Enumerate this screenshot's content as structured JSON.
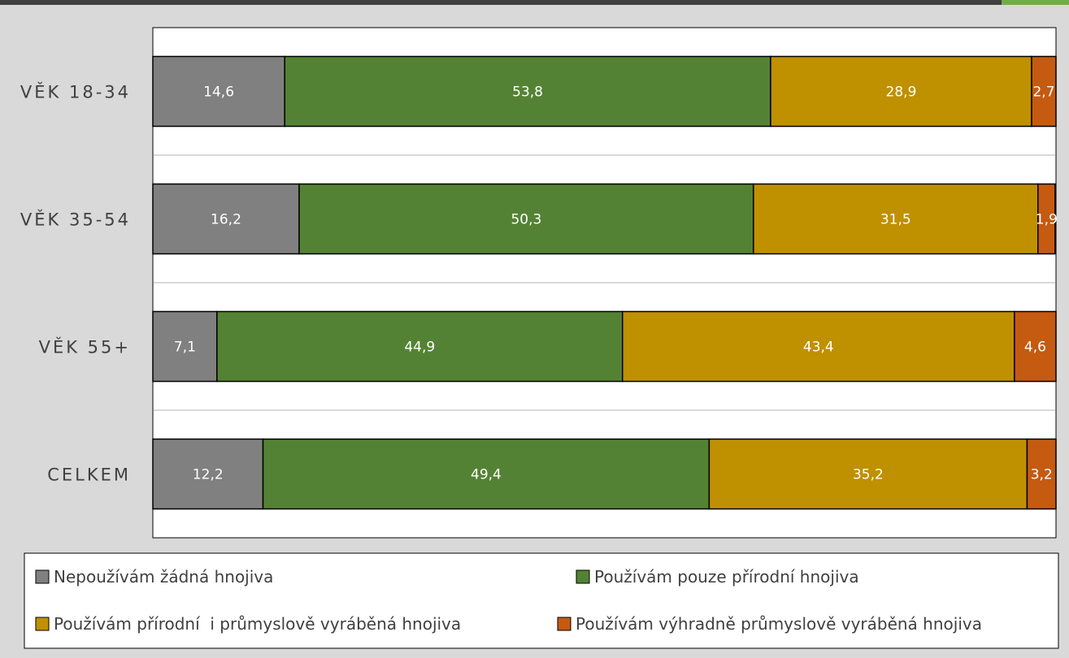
{
  "chart_data": {
    "type": "bar",
    "orientation": "horizontal",
    "stacked": true,
    "categories": [
      "VĚK 18-34",
      "VĚK 35-54",
      "VĚK 55+",
      "CELKEM"
    ],
    "series": [
      {
        "name": "Nepoužívám žádná hnojiva",
        "values": [
          14.6,
          16.2,
          7.1,
          12.2
        ],
        "color": "#808080"
      },
      {
        "name": "Používám pouze přírodní hnojiva",
        "values": [
          53.8,
          50.3,
          44.9,
          49.4
        ],
        "color": "#548235"
      },
      {
        "name": "Používám přírodní  i průmyslově vyráběná hnojiva",
        "values": [
          28.9,
          31.5,
          43.4,
          35.2
        ],
        "color": "#bf9000"
      },
      {
        "name": "Používám výhradně průmyslově vyráběná hnojiva",
        "values": [
          2.7,
          1.9,
          4.6,
          3.2
        ],
        "color": "#c55a11"
      }
    ],
    "data_labels": [
      [
        "14,6",
        "53,8",
        "28,9",
        "2,7"
      ],
      [
        "16,2",
        "50,3",
        "31,5",
        "1,9"
      ],
      [
        "7,1",
        "44,9",
        "43,4",
        "4,6"
      ],
      [
        "12,2",
        "49,4",
        "35,2",
        "3,2"
      ]
    ],
    "xlim": [
      0,
      100
    ],
    "grid": true,
    "legend_position": "bottom"
  },
  "colors": {
    "background": "#d9d9d9",
    "plot_background": "#ffffff",
    "bar_outline": "#000000",
    "gridline": "#d9d9d9",
    "label_text": "#404040",
    "top_strip": "#404040",
    "top_strip_accent": "#70ad47"
  }
}
